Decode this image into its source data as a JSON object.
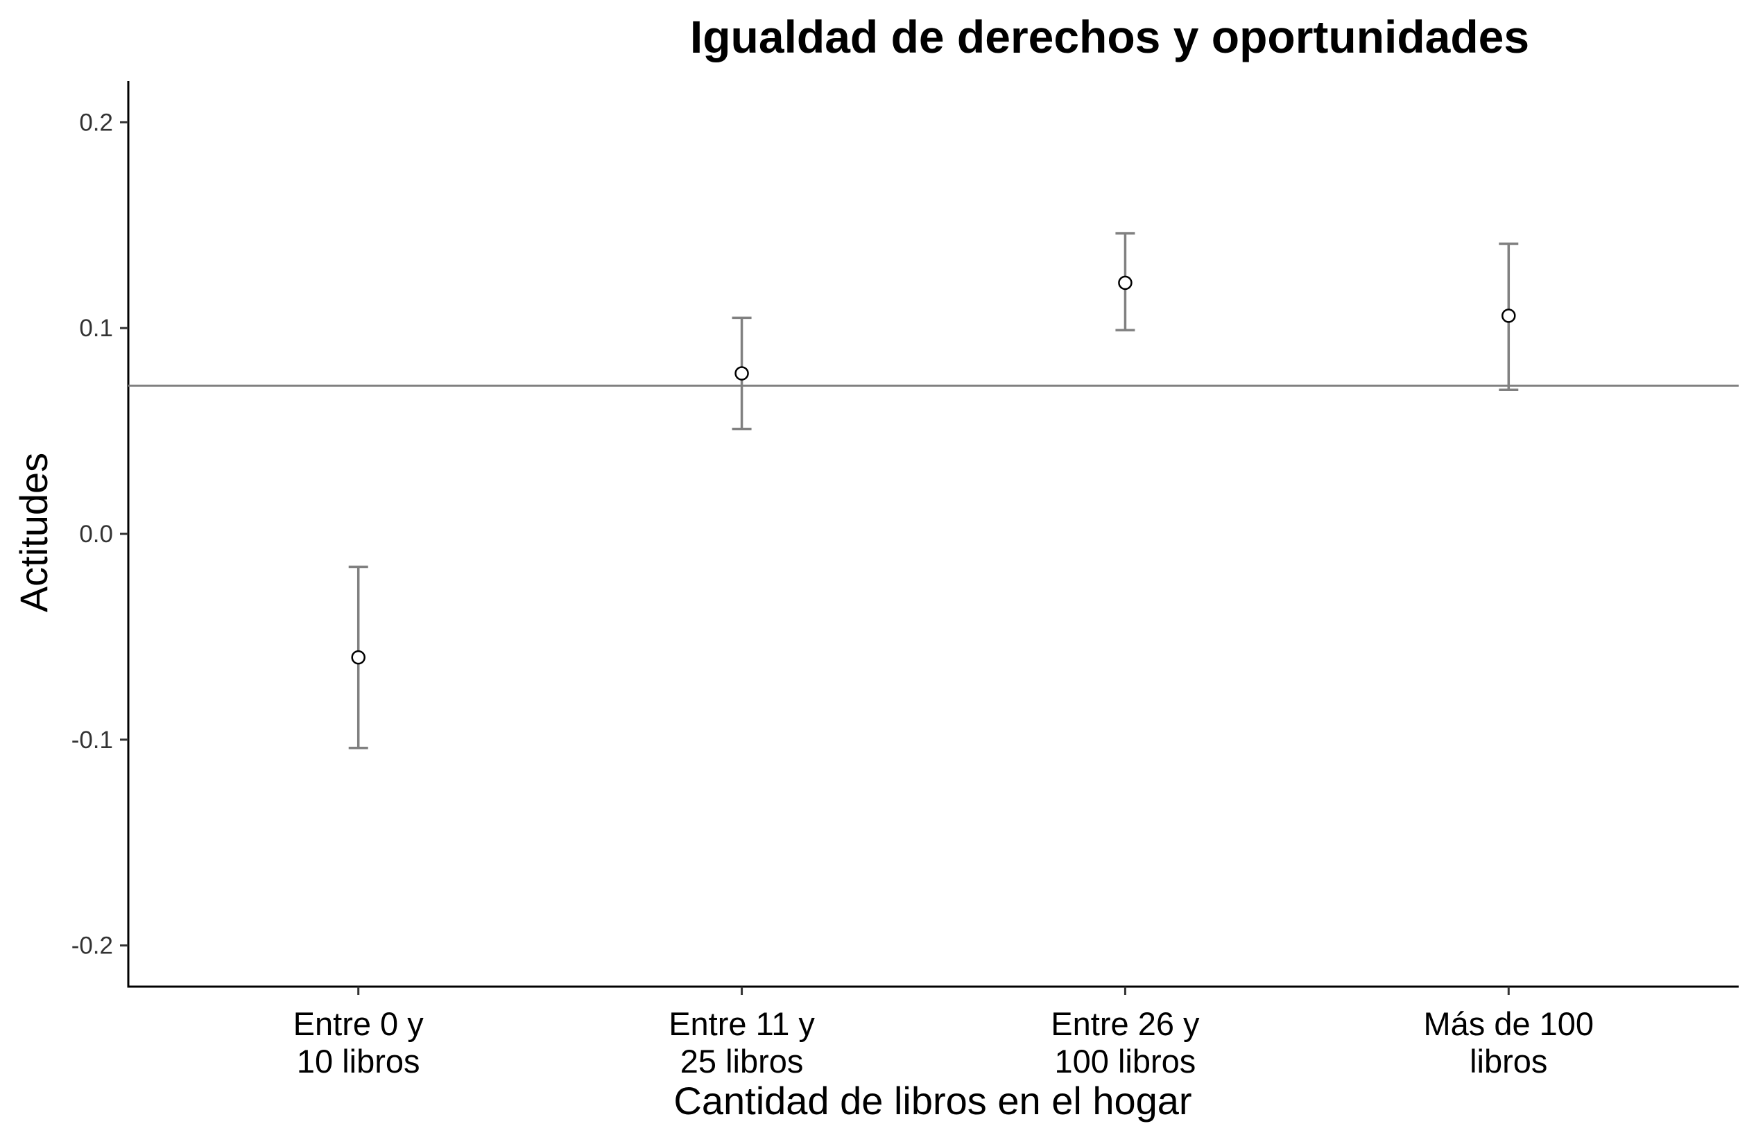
{
  "chart_data": {
    "type": "scatter",
    "title": "Igualdad de derechos y oportunidades",
    "xlabel": "Cantidad de libros en el hogar",
    "ylabel": "Actitudes",
    "categories": [
      [
        "Entre 0 y",
        "10 libros"
      ],
      [
        "Entre 11 y",
        "25 libros"
      ],
      [
        "Entre 26 y",
        "100 libros"
      ],
      [
        "Más de 100",
        "libros"
      ]
    ],
    "points": [
      {
        "y": -0.06,
        "lower": -0.104,
        "upper": -0.016
      },
      {
        "y": 0.078,
        "lower": 0.051,
        "upper": 0.105
      },
      {
        "y": 0.122,
        "lower": 0.099,
        "upper": 0.146
      },
      {
        "y": 0.106,
        "lower": 0.07,
        "upper": 0.141
      }
    ],
    "reference_line": 0.072,
    "ylim": [
      -0.22,
      0.22
    ],
    "yticks": [
      -0.2,
      -0.1,
      0.0,
      0.1,
      0.2
    ],
    "ytick_labels": [
      "-0.2",
      "-0.1",
      "0.0",
      "0.1",
      "0.2"
    ],
    "grid": false,
    "colors": {
      "errorbar": "#808080",
      "point_fill": "#ffffff",
      "point_stroke": "#000000",
      "reference_line": "#808080"
    }
  }
}
